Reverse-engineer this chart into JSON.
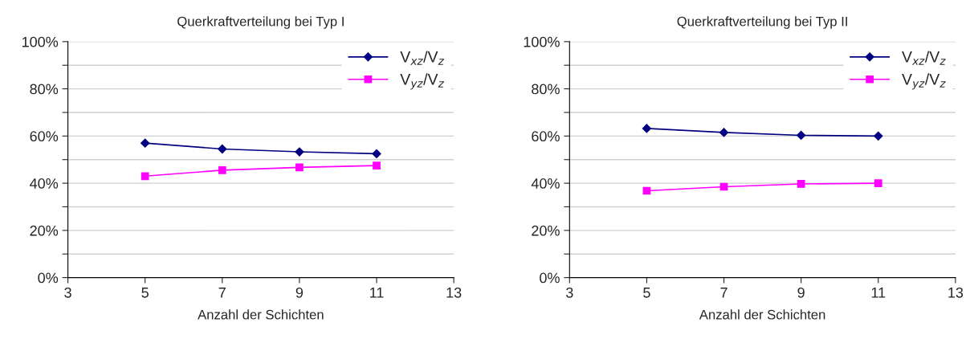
{
  "chart_data": [
    {
      "type": "line",
      "title": "Querkraftverteilung bei Typ I",
      "xlabel": "Anzahl der Schichten",
      "x": [
        5,
        7,
        9,
        11
      ],
      "series": [
        {
          "name": "V$_{xz}$/V$_{z}$",
          "color": "#000080",
          "marker": "diamond",
          "values": [
            57,
            54.5,
            53.3,
            52.5
          ]
        },
        {
          "name": "V$_{yz}$/V$_{z}$",
          "color": "#ff00ff",
          "marker": "square",
          "values": [
            43,
            45.5,
            46.7,
            47.5
          ]
        }
      ],
      "xlim": [
        3,
        13
      ],
      "xticks": [
        3,
        5,
        7,
        9,
        11,
        13
      ],
      "ylim": [
        0,
        100
      ],
      "yticks": [
        {
          "value": 0,
          "label": "0%"
        },
        {
          "value": 10,
          "label": null
        },
        {
          "value": 20,
          "label": "20%"
        },
        {
          "value": 30,
          "label": null
        },
        {
          "value": 40,
          "label": "40%"
        },
        {
          "value": 50,
          "label": null
        },
        {
          "value": 60,
          "label": "60%"
        },
        {
          "value": 70,
          "label": null
        },
        {
          "value": 80,
          "label": "80%"
        },
        {
          "value": 90,
          "label": null
        },
        {
          "value": 100,
          "label": "100%"
        }
      ],
      "grid": "y",
      "legend": "top right",
      "line_style": "solid"
    },
    {
      "type": "line",
      "title": "Querkraftverteilung bei Typ II",
      "xlabel": "Anzahl der Schichten",
      "x": [
        5,
        7,
        9,
        11
      ],
      "series": [
        {
          "name": "V$_{xz}$/V$_{z}$",
          "color": "#000080",
          "marker": "diamond",
          "values": [
            63.2,
            61.5,
            60.3,
            60
          ]
        },
        {
          "name": "V$_{yz}$/V$_{z}$",
          "color": "#ff00ff",
          "marker": "square",
          "values": [
            36.8,
            38.5,
            39.7,
            40
          ]
        }
      ],
      "xlim": [
        3,
        13
      ],
      "xticks": [
        3,
        5,
        7,
        9,
        11,
        13
      ],
      "ylim": [
        0,
        100
      ],
      "yticks": [
        {
          "value": 0,
          "label": "0%"
        },
        {
          "value": 10,
          "label": null
        },
        {
          "value": 20,
          "label": "20%"
        },
        {
          "value": 30,
          "label": null
        },
        {
          "value": 40,
          "label": "40%"
        },
        {
          "value": 50,
          "label": null
        },
        {
          "value": 60,
          "label": "60%"
        },
        {
          "value": 70,
          "label": null
        },
        {
          "value": 80,
          "label": "80%"
        },
        {
          "value": 90,
          "label": null
        },
        {
          "value": 100,
          "label": "100%"
        }
      ],
      "grid": "y",
      "legend": "top right",
      "line_style": "solid"
    }
  ]
}
